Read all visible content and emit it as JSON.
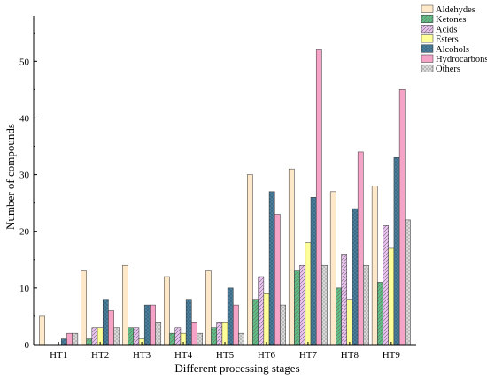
{
  "chart_data": {
    "type": "bar",
    "xlabel": "Different processing stages",
    "ylabel": "Number of compounds",
    "ylim": [
      0,
      58
    ],
    "yticks": [
      0,
      10,
      20,
      30,
      40,
      50
    ],
    "categories": [
      "HT1",
      "HT2",
      "HT3",
      "HT4",
      "HT5",
      "HT6",
      "HT7",
      "HT8",
      "HT9"
    ],
    "series": [
      {
        "name": "Aldehydes",
        "color": "#fde9c9",
        "pattern": "solid",
        "values": [
          5,
          13,
          14,
          12,
          13,
          30,
          31,
          27,
          28
        ]
      },
      {
        "name": "Ketones",
        "color": "#5fbf84",
        "pattern": "hatch",
        "values": [
          0,
          1,
          3,
          2,
          3,
          8,
          13,
          10,
          11
        ]
      },
      {
        "name": "Acids",
        "color": "#ecc2f2",
        "pattern": "hatch",
        "values": [
          0,
          3,
          3,
          3,
          4,
          12,
          14,
          16,
          21
        ]
      },
      {
        "name": "Esters",
        "color": "#ffff99",
        "pattern": "solid",
        "values": [
          0,
          3,
          1,
          2,
          4,
          9,
          18,
          8,
          17
        ]
      },
      {
        "name": "Alcohols",
        "color": "#4a7e9a",
        "pattern": "dots",
        "values": [
          1,
          8,
          7,
          8,
          10,
          27,
          26,
          24,
          33
        ]
      },
      {
        "name": "Hydrocarbons",
        "color": "#f5a3c6",
        "pattern": "solid",
        "values": [
          2,
          6,
          7,
          4,
          7,
          23,
          52,
          34,
          45
        ]
      },
      {
        "name": "Others",
        "color": "#d9d9d9",
        "pattern": "cross",
        "values": [
          2,
          3,
          4,
          2,
          2,
          7,
          14,
          14,
          22
        ]
      }
    ],
    "legend_position": "top-right",
    "grid": false
  }
}
